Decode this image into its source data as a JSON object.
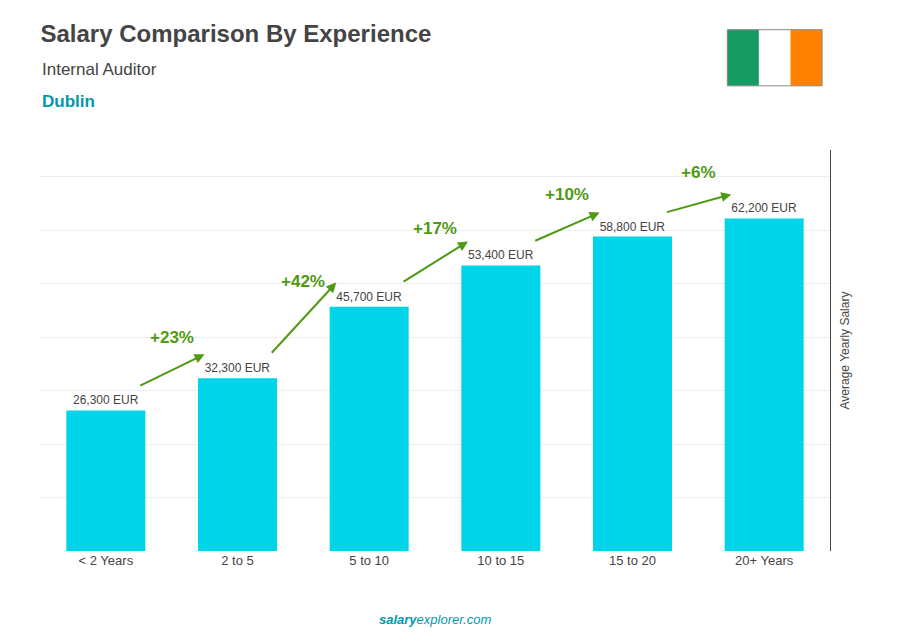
{
  "chart_data": {
    "type": "bar",
    "title": "Salary Comparison By Experience",
    "subtitle": "Internal Auditor",
    "city": "Dublin",
    "categories": [
      "< 2 Years",
      "2 to 5",
      "5 to 10",
      "10 to 15",
      "15 to 20",
      "20+ Years"
    ],
    "values": [
      26300,
      32300,
      45700,
      53400,
      58800,
      62200
    ],
    "value_labels": [
      "26,300 EUR",
      "32,300 EUR",
      "45,700 EUR",
      "53,400 EUR",
      "58,800 EUR",
      "62,200 EUR"
    ],
    "data_labels": true,
    "annotations": [
      "+23%",
      "+42%",
      "+17%",
      "+10%",
      "+6%"
    ],
    "ylabel": "Average Yearly Salary",
    "source": [
      "salary",
      "explorer.com"
    ],
    "color": "#00d4e8",
    "ylim": [
      0,
      75000
    ],
    "yticks": [
      0,
      10000,
      20000,
      30000,
      40000,
      50000,
      60000,
      70000
    ],
    "grid": true,
    "tick_labels": "x"
  }
}
